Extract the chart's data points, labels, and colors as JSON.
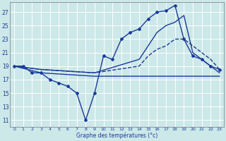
{
  "xlabel": "Graphe des températures (°c)",
  "bg_color": "#cce8e8",
  "grid_color": "#ffffff",
  "line_color": "#1a3a9a",
  "ylim": [
    10.0,
    28.5
  ],
  "yticks": [
    11,
    13,
    15,
    17,
    19,
    21,
    23,
    25,
    27
  ],
  "xlim": [
    -0.5,
    23.5
  ],
  "xticks": [
    0,
    1,
    2,
    3,
    4,
    5,
    6,
    7,
    8,
    9,
    10,
    11,
    12,
    13,
    14,
    15,
    16,
    17,
    18,
    19,
    20,
    21,
    22,
    23
  ],
  "series": [
    {
      "x": [
        0,
        1,
        2,
        3,
        4,
        5,
        6,
        7,
        8,
        9,
        10,
        11,
        12,
        13,
        14,
        15,
        16,
        17,
        18,
        19,
        20,
        21,
        22,
        23
      ],
      "y": [
        19,
        19,
        18,
        18,
        17,
        16.5,
        16,
        15,
        11,
        15,
        20.5,
        20,
        23,
        24,
        24.5,
        26,
        27,
        27.2,
        28,
        23,
        20.5,
        20,
        19,
        18.5
      ],
      "marker": "D",
      "markersize": 2.0,
      "linewidth": 1.0,
      "linestyle": "-"
    },
    {
      "x": [
        0,
        3,
        9,
        14,
        15,
        16,
        17,
        18,
        19,
        20,
        21,
        22,
        23
      ],
      "y": [
        19,
        18.5,
        18,
        20,
        22,
        24,
        25,
        25.5,
        26.5,
        21,
        20,
        19,
        18
      ],
      "marker": null,
      "markersize": 0,
      "linewidth": 1.0,
      "linestyle": "-"
    },
    {
      "x": [
        0,
        3,
        9,
        14,
        15,
        16,
        17,
        18,
        19,
        20,
        21,
        22,
        23
      ],
      "y": [
        19,
        18.5,
        18,
        19,
        20.5,
        21.5,
        22,
        23,
        23,
        22,
        21,
        20,
        18.5
      ],
      "marker": null,
      "markersize": 0,
      "linewidth": 1.0,
      "linestyle": "--"
    },
    {
      "x": [
        0,
        3,
        9,
        17,
        18,
        22,
        23
      ],
      "y": [
        19,
        18,
        17.5,
        17.5,
        17.5,
        17.5,
        17.5
      ],
      "marker": null,
      "markersize": 0,
      "linewidth": 1.0,
      "linestyle": "-"
    }
  ]
}
